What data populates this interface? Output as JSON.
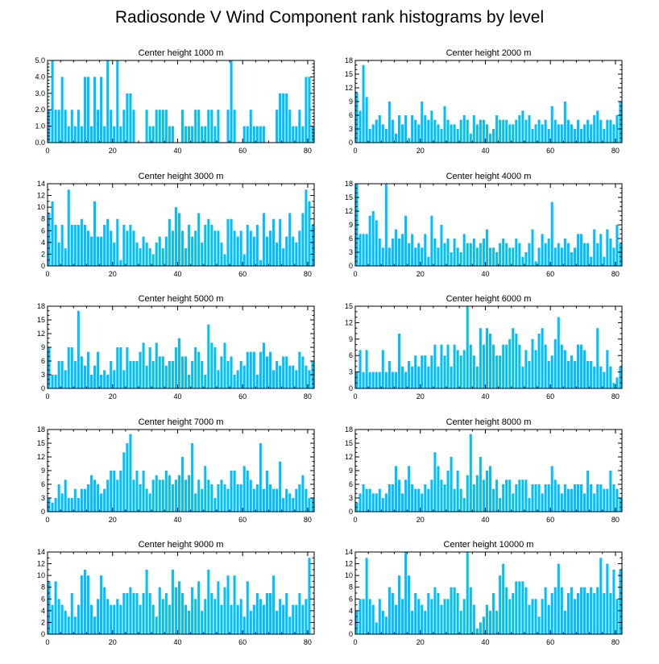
{
  "figure_title": "Radiosonde V Wind Component rank histograms by level",
  "colors": {
    "bar": "#00bfff",
    "frame": "#000000"
  },
  "chart_data": [
    {
      "type": "bar",
      "title": "Center height 1000 m",
      "xlim": [
        0,
        82
      ],
      "xticks": [
        0,
        20,
        40,
        60,
        80
      ],
      "ylim": [
        0,
        5
      ],
      "yticks": [
        0,
        1,
        2,
        3,
        4,
        5
      ],
      "ytick_labels": [
        "0.0",
        "1.0",
        "2.0",
        "3.0",
        "4.0",
        "5.0"
      ],
      "values": [
        2,
        5,
        2,
        2,
        4,
        2,
        1,
        2,
        1,
        2,
        1,
        4,
        4,
        1,
        4,
        2,
        4,
        1,
        5,
        2,
        1,
        5,
        1,
        2,
        3,
        3,
        2,
        0,
        0,
        0,
        2,
        1,
        1,
        2,
        2,
        2,
        2,
        1,
        1,
        0,
        0,
        2,
        1,
        1,
        1,
        2,
        2,
        1,
        1,
        2,
        2,
        1,
        2,
        0,
        0,
        2,
        5,
        2,
        0,
        0,
        1,
        1,
        2,
        1,
        1,
        1,
        1,
        0,
        0,
        0,
        2,
        3,
        3,
        3,
        2,
        1,
        1,
        2,
        1,
        4,
        4,
        1
      ]
    },
    {
      "type": "bar",
      "title": "Center height 2000 m",
      "xlim": [
        0,
        82
      ],
      "xticks": [
        0,
        20,
        40,
        60,
        80
      ],
      "ylim": [
        0,
        18
      ],
      "yticks": [
        0,
        3,
        6,
        9,
        12,
        15,
        18
      ],
      "ytick_labels": [
        "0",
        "3",
        "6",
        "9",
        "12",
        "15",
        "18"
      ],
      "values": [
        11,
        7,
        17,
        10,
        3,
        4,
        5,
        6,
        4,
        3,
        9,
        5,
        2,
        6,
        4,
        6,
        1,
        6,
        5,
        4,
        9,
        6,
        5,
        7,
        5,
        4,
        3,
        8,
        5,
        4,
        4,
        3,
        5,
        6,
        5,
        2,
        6,
        4,
        5,
        5,
        4,
        2,
        3,
        6,
        5,
        5,
        5,
        4,
        4,
        5,
        6,
        7,
        5,
        6,
        3,
        4,
        5,
        4,
        5,
        3,
        8,
        5,
        4,
        4,
        9,
        5,
        4,
        3,
        5,
        3,
        4,
        5,
        4,
        6,
        7,
        5,
        3,
        5,
        5,
        4,
        6,
        9,
        9,
        6
      ]
    },
    {
      "type": "bar",
      "title": "Center height 3000 m",
      "xlim": [
        0,
        82
      ],
      "xticks": [
        0,
        20,
        40,
        60,
        80
      ],
      "ylim": [
        0,
        14
      ],
      "yticks": [
        0,
        2,
        4,
        6,
        8,
        10,
        12,
        14
      ],
      "ytick_labels": [
        "0",
        "2",
        "4",
        "6",
        "8",
        "10",
        "12",
        "14"
      ],
      "values": [
        9,
        11,
        7,
        4,
        7,
        3,
        13,
        7,
        7,
        7,
        8,
        7,
        6,
        5,
        11,
        5,
        5,
        7,
        8,
        6,
        4,
        8,
        1,
        7,
        6,
        7,
        6,
        4,
        3,
        5,
        4,
        3,
        2,
        4,
        5,
        3,
        5,
        8,
        6,
        10,
        9,
        6,
        3,
        7,
        5,
        6,
        9,
        4,
        7,
        8,
        7,
        6,
        6,
        4,
        2,
        8,
        8,
        6,
        5,
        6,
        2,
        7,
        6,
        5,
        7,
        1,
        9,
        5,
        6,
        8,
        4,
        8,
        3,
        5,
        9,
        5,
        4,
        6,
        9,
        13,
        11,
        7,
        11,
        8,
        12,
        9
      ]
    },
    {
      "type": "bar",
      "title": "Center height 4000 m",
      "xlim": [
        0,
        82
      ],
      "xticks": [
        0,
        20,
        40,
        60,
        80
      ],
      "ylim": [
        0,
        18
      ],
      "yticks": [
        0,
        3,
        6,
        9,
        12,
        15,
        18
      ],
      "ytick_labels": [
        "0",
        "3",
        "6",
        "9",
        "12",
        "15",
        "18"
      ],
      "values": [
        18,
        7,
        7,
        7,
        11,
        12,
        10,
        6,
        4,
        18,
        4,
        6,
        8,
        6,
        7,
        11,
        5,
        7,
        4,
        5,
        4,
        7,
        2,
        11,
        6,
        4,
        9,
        5,
        6,
        3,
        6,
        4,
        3,
        7,
        5,
        5,
        6,
        4,
        5,
        6,
        8,
        4,
        4,
        3,
        5,
        6,
        5,
        4,
        4,
        6,
        5,
        2,
        3,
        5,
        8,
        1,
        4,
        7,
        5,
        6,
        14,
        4,
        5,
        4,
        6,
        5,
        3,
        4,
        7,
        7,
        5,
        5,
        2,
        8,
        5,
        7,
        2,
        8,
        6,
        4,
        9,
        5,
        11
      ]
    },
    {
      "type": "bar",
      "title": "Center height 5000 m",
      "xlim": [
        0,
        82
      ],
      "xticks": [
        0,
        20,
        40,
        60,
        80
      ],
      "ylim": [
        0,
        18
      ],
      "yticks": [
        0,
        3,
        6,
        9,
        12,
        15,
        18
      ],
      "ytick_labels": [
        "0",
        "3",
        "6",
        "9",
        "12",
        "15",
        "18"
      ],
      "values": [
        9,
        3,
        3,
        6,
        6,
        4,
        9,
        9,
        6,
        17,
        7,
        5,
        8,
        3,
        5,
        8,
        3,
        4,
        3,
        6,
        4,
        9,
        9,
        4,
        9,
        6,
        6,
        6,
        8,
        10,
        5,
        9,
        6,
        10,
        7,
        7,
        5,
        6,
        6,
        9,
        11,
        7,
        7,
        3,
        6,
        9,
        8,
        6,
        3,
        14,
        10,
        9,
        4,
        7,
        10,
        6,
        7,
        3,
        4,
        6,
        5,
        8,
        8,
        8,
        3,
        8,
        10,
        7,
        8,
        4,
        6,
        5,
        7,
        7,
        5,
        5,
        4,
        8,
        7,
        5,
        4,
        6,
        5
      ]
    },
    {
      "type": "bar",
      "title": "Center height 6000 m",
      "xlim": [
        0,
        82
      ],
      "xticks": [
        0,
        20,
        40,
        60,
        80
      ],
      "ylim": [
        0,
        15
      ],
      "yticks": [
        0,
        3,
        6,
        9,
        12,
        15
      ],
      "ytick_labels": [
        "0",
        "3",
        "6",
        "9",
        "12",
        "15"
      ],
      "values": [
        3,
        7,
        3,
        7,
        3,
        3,
        3,
        3,
        7,
        3,
        5,
        3,
        3,
        10,
        4,
        3,
        5,
        4,
        6,
        4,
        6,
        6,
        4,
        6,
        8,
        4,
        8,
        6,
        8,
        4,
        8,
        7,
        6,
        7,
        15,
        8,
        6,
        4,
        11,
        8,
        11,
        10,
        8,
        6,
        6,
        8,
        8,
        9,
        11,
        10,
        8,
        4,
        7,
        5,
        9,
        7,
        10,
        11,
        8,
        5,
        6,
        9,
        13,
        8,
        7,
        5,
        6,
        5,
        8,
        8,
        7,
        5,
        5,
        4,
        11,
        4,
        3,
        7,
        4,
        1,
        2,
        4,
        2,
        3,
        5,
        3
      ]
    },
    {
      "type": "bar",
      "title": "Center height 7000 m",
      "xlim": [
        0,
        82
      ],
      "xticks": [
        0,
        20,
        40,
        60,
        80
      ],
      "ylim": [
        0,
        18
      ],
      "yticks": [
        0,
        3,
        6,
        9,
        12,
        15,
        18
      ],
      "ytick_labels": [
        "0",
        "3",
        "6",
        "9",
        "12",
        "15",
        "18"
      ],
      "values": [
        3,
        2,
        3,
        6,
        4,
        7,
        3,
        3,
        5,
        3,
        5,
        5,
        6,
        8,
        7,
        6,
        4,
        5,
        7,
        9,
        9,
        7,
        9,
        13,
        15,
        17,
        7,
        9,
        6,
        9,
        5,
        4,
        7,
        8,
        7,
        7,
        9,
        8,
        6,
        7,
        8,
        12,
        7,
        8,
        15,
        4,
        7,
        5,
        10,
        7,
        6,
        3,
        6,
        7,
        6,
        5,
        9,
        9,
        6,
        6,
        10,
        9,
        7,
        5,
        6,
        15,
        5,
        9,
        6,
        5,
        5,
        11,
        3,
        5,
        4,
        3,
        5,
        6,
        8,
        5,
        3,
        3,
        5
      ]
    },
    {
      "type": "bar",
      "title": "Center height 8000 m",
      "xlim": [
        0,
        82
      ],
      "xticks": [
        0,
        20,
        40,
        60,
        80
      ],
      "ylim": [
        0,
        18
      ],
      "yticks": [
        0,
        3,
        6,
        9,
        12,
        15,
        18
      ],
      "ytick_labels": [
        "0",
        "3",
        "6",
        "9",
        "12",
        "15",
        "18"
      ],
      "values": [
        2,
        4,
        6,
        5,
        5,
        4,
        4,
        5,
        3,
        4,
        6,
        6,
        10,
        7,
        4,
        7,
        10,
        6,
        5,
        5,
        4,
        6,
        5,
        7,
        13,
        10,
        7,
        6,
        9,
        12,
        5,
        9,
        5,
        3,
        8,
        17,
        6,
        8,
        12,
        7,
        9,
        10,
        5,
        7,
        3,
        6,
        7,
        7,
        4,
        6,
        7,
        7,
        7,
        3,
        6,
        6,
        6,
        4,
        6,
        6,
        10,
        7,
        6,
        4,
        6,
        5,
        5,
        6,
        6,
        6,
        4,
        9,
        6,
        4,
        6,
        6,
        5,
        5,
        9,
        6,
        5,
        3,
        6
      ]
    },
    {
      "type": "bar",
      "title": "Center height 9000 m",
      "xlim": [
        0,
        82
      ],
      "xticks": [
        0,
        20,
        40,
        60,
        80
      ],
      "ylim": [
        0,
        14
      ],
      "yticks": [
        0,
        2,
        4,
        6,
        8,
        10,
        12,
        14
      ],
      "ytick_labels": [
        "0",
        "2",
        "4",
        "6",
        "8",
        "10",
        "12",
        "14"
      ],
      "values": [
        9,
        5,
        9,
        6,
        5,
        4,
        3,
        7,
        3,
        5,
        10,
        11,
        10,
        5,
        3,
        6,
        10,
        8,
        6,
        5,
        5,
        6,
        5,
        7,
        7,
        8,
        7,
        7,
        5,
        7,
        11,
        7,
        5,
        3,
        8,
        6,
        7,
        5,
        11,
        8,
        9,
        7,
        5,
        4,
        8,
        6,
        9,
        4,
        6,
        11,
        7,
        6,
        9,
        5,
        8,
        10,
        5,
        10,
        5,
        6,
        3,
        9,
        4,
        5,
        7,
        6,
        5,
        7,
        7,
        10,
        4,
        6,
        5,
        7,
        3,
        5,
        5,
        7,
        5,
        6,
        13
      ]
    },
    {
      "type": "bar",
      "title": "Center height 10000 m",
      "xlim": [
        0,
        82
      ],
      "xticks": [
        0,
        20,
        40,
        60,
        80
      ],
      "ylim": [
        0,
        14
      ],
      "yticks": [
        0,
        2,
        4,
        6,
        8,
        10,
        12,
        14
      ],
      "ytick_labels": [
        "0",
        "2",
        "4",
        "6",
        "8",
        "10",
        "12",
        "14"
      ],
      "values": [
        4,
        6,
        6,
        13,
        6,
        5,
        2,
        6,
        4,
        3,
        8,
        7,
        5,
        10,
        6,
        14,
        10,
        4,
        7,
        6,
        5,
        4,
        7,
        6,
        8,
        7,
        5,
        6,
        6,
        8,
        8,
        7,
        4,
        6,
        14,
        8,
        5,
        1,
        2,
        3,
        5,
        4,
        7,
        4,
        10,
        12,
        8,
        6,
        7,
        9,
        9,
        9,
        8,
        5,
        6,
        6,
        3,
        6,
        8,
        5,
        7,
        8,
        12,
        8,
        4,
        7,
        8,
        6,
        7,
        8,
        8,
        7,
        8,
        7,
        8,
        13,
        7,
        12,
        7,
        11,
        6,
        11
      ]
    }
  ]
}
